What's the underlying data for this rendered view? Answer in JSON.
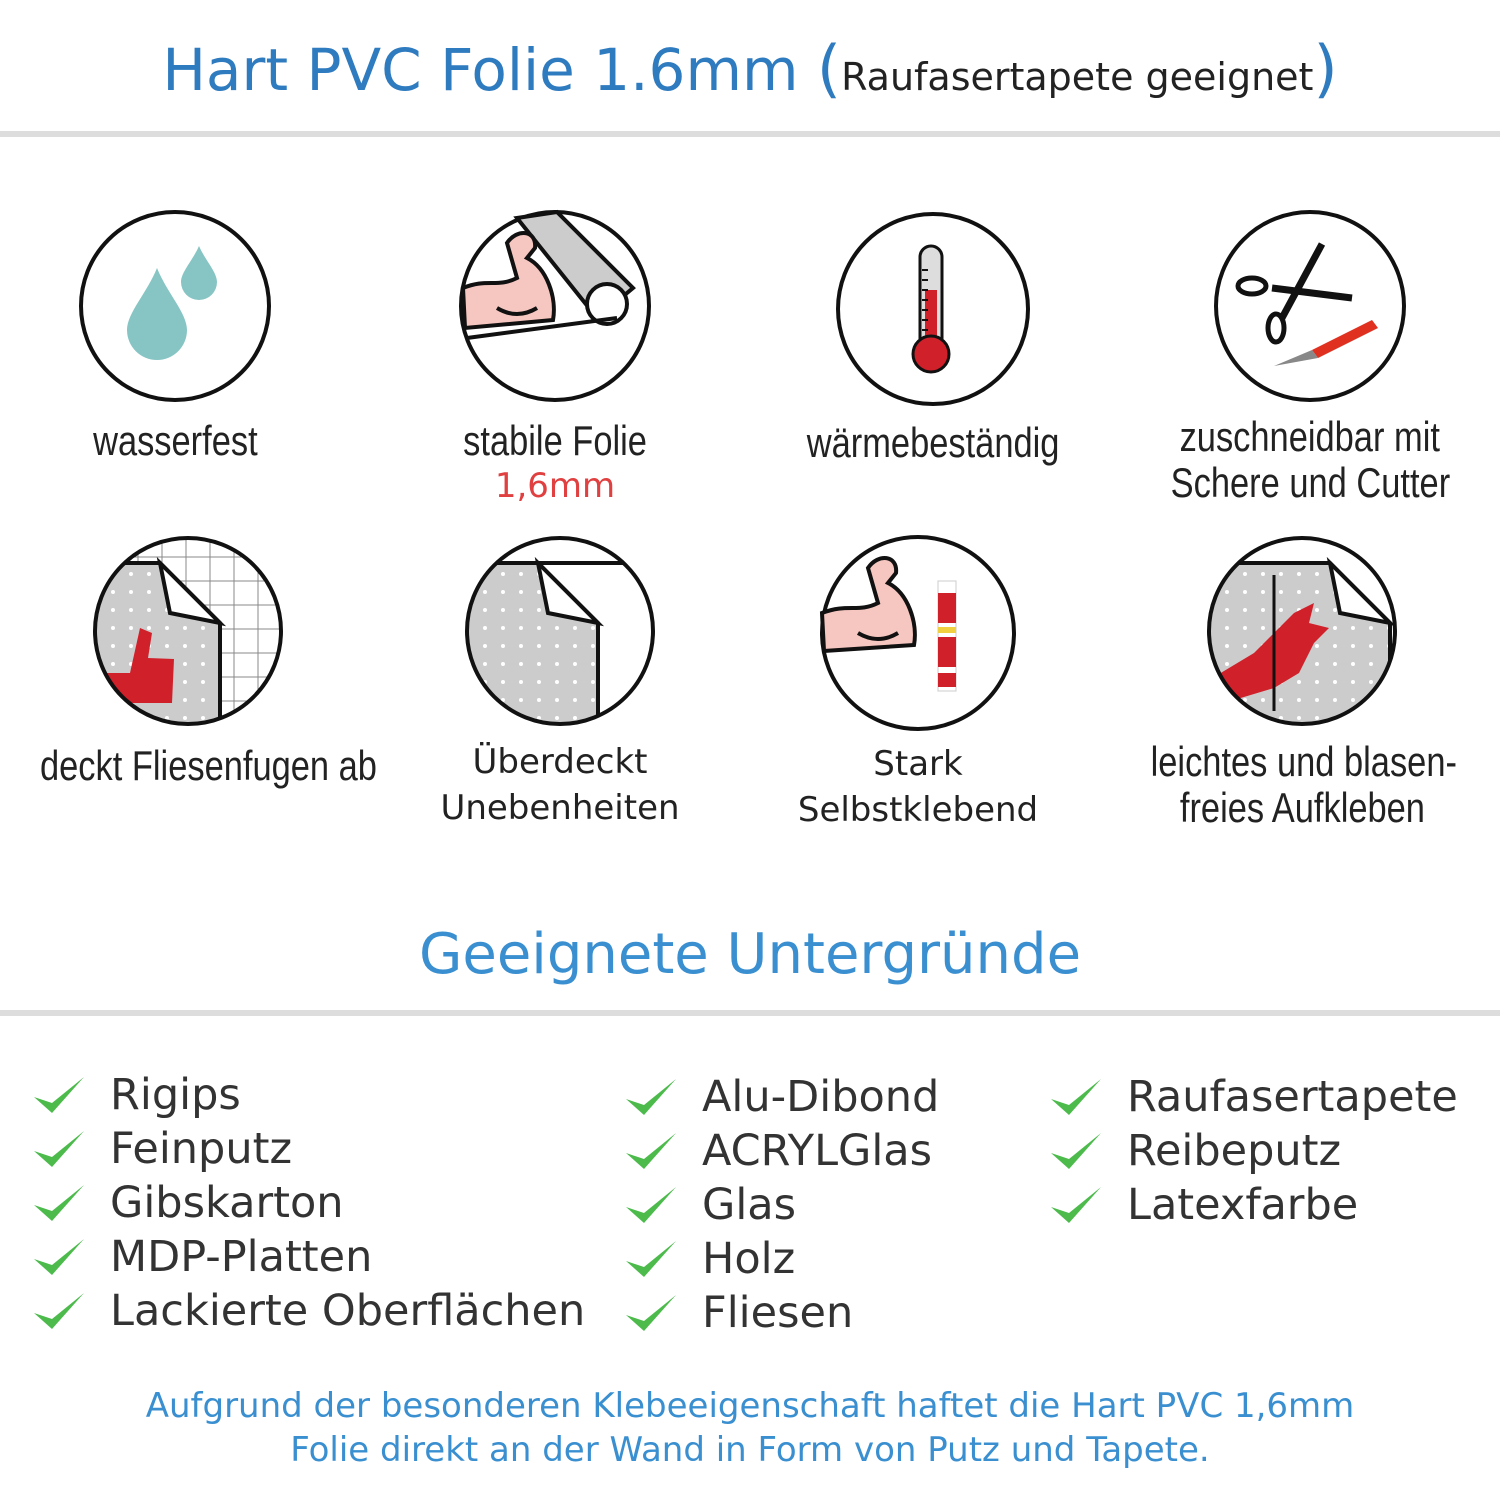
{
  "header": {
    "title": "Hart PVC Folie 1.6mm",
    "subtitle": "Raufasertapete geeignet",
    "open_paren": "(",
    "close_paren": ")"
  },
  "features": [
    {
      "icon": "water-drops-icon",
      "label": "wasserfest"
    },
    {
      "icon": "flexed-arm-roll-icon",
      "label": "stabile Folie",
      "sublabel": "1,6mm"
    },
    {
      "icon": "thermometer-icon",
      "label": "wärmebeständig"
    },
    {
      "icon": "scissors-cutter-icon",
      "label": "zuschneidbar mit",
      "label2": "Schere und Cutter"
    },
    {
      "icon": "thumbs-up-tiles-icon",
      "label": "deckt Fliesenfugen ab"
    },
    {
      "icon": "foil-corner-icon",
      "label": "Überdeckt",
      "label2": "Unebenheiten"
    },
    {
      "icon": "arm-glue-icon",
      "label": "Stark",
      "label2": "Selbstklebend"
    },
    {
      "icon": "hand-smoothing-icon",
      "label": "leichtes und blasen-",
      "label2": "freies Aufkleben"
    }
  ],
  "section": {
    "title": "Geeignete Untergründe"
  },
  "surfaces": {
    "col1": [
      "Rigips",
      "Feinputz",
      "Gibskarton",
      "MDP-Platten",
      "Lackierte Oberflächen"
    ],
    "col2": [
      "Alu-Dibond",
      "ACRYLGlas",
      "Glas",
      "Holz",
      "Fliesen"
    ],
    "col3": [
      "Raufasertapete",
      "Reibeputz",
      "Latexfarbe"
    ]
  },
  "footer": {
    "line1": "Aufgrund der besonderen Klebeeigenschaft haftet die Hart PVC 1,6mm",
    "line2": "Folie direkt an der Wand in Form von Putz und Tapete."
  },
  "colors": {
    "title_blue": "#2f7bbf",
    "accent_blue": "#3a8fd0",
    "check_green": "#4cbb4c",
    "red": "#d0202a",
    "drop_teal": "#86c5c4"
  }
}
